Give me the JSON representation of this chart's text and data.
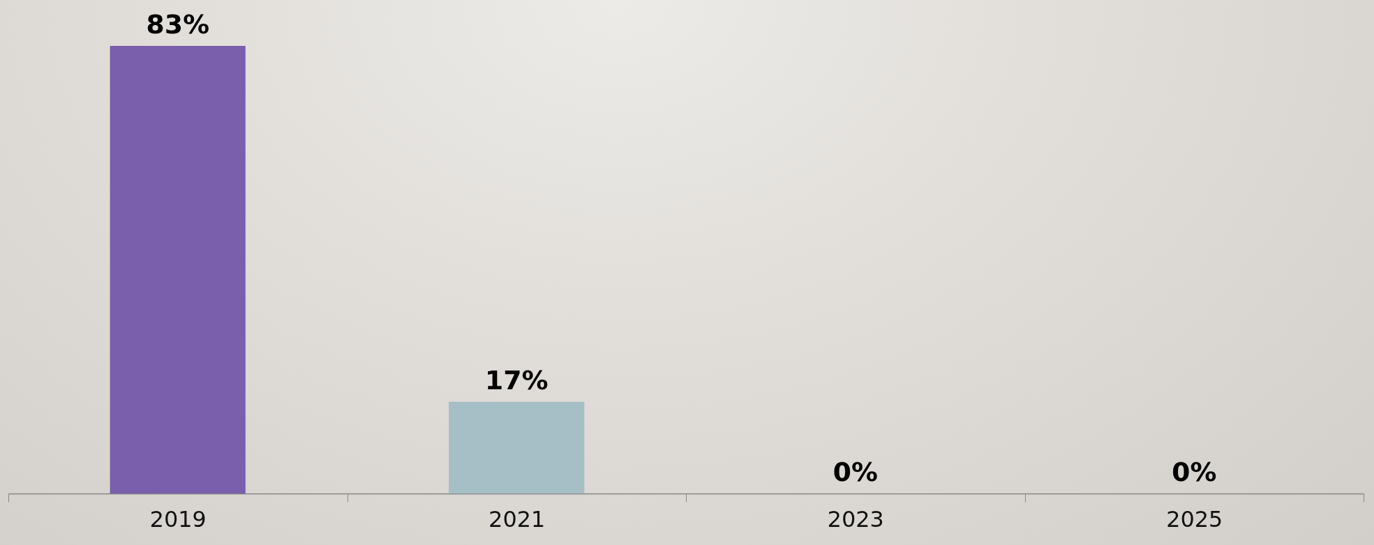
{
  "chart_data": {
    "type": "bar",
    "categories": [
      "2019",
      "2021",
      "2023",
      "2025"
    ],
    "values": [
      83,
      17,
      0,
      0
    ],
    "colors": [
      "#7a5fad",
      "#a6bfc6",
      "#a6bfc6",
      "#a6bfc6"
    ],
    "value_labels": [
      "83%",
      "17%",
      "0%",
      "0%"
    ],
    "grid": false
  }
}
